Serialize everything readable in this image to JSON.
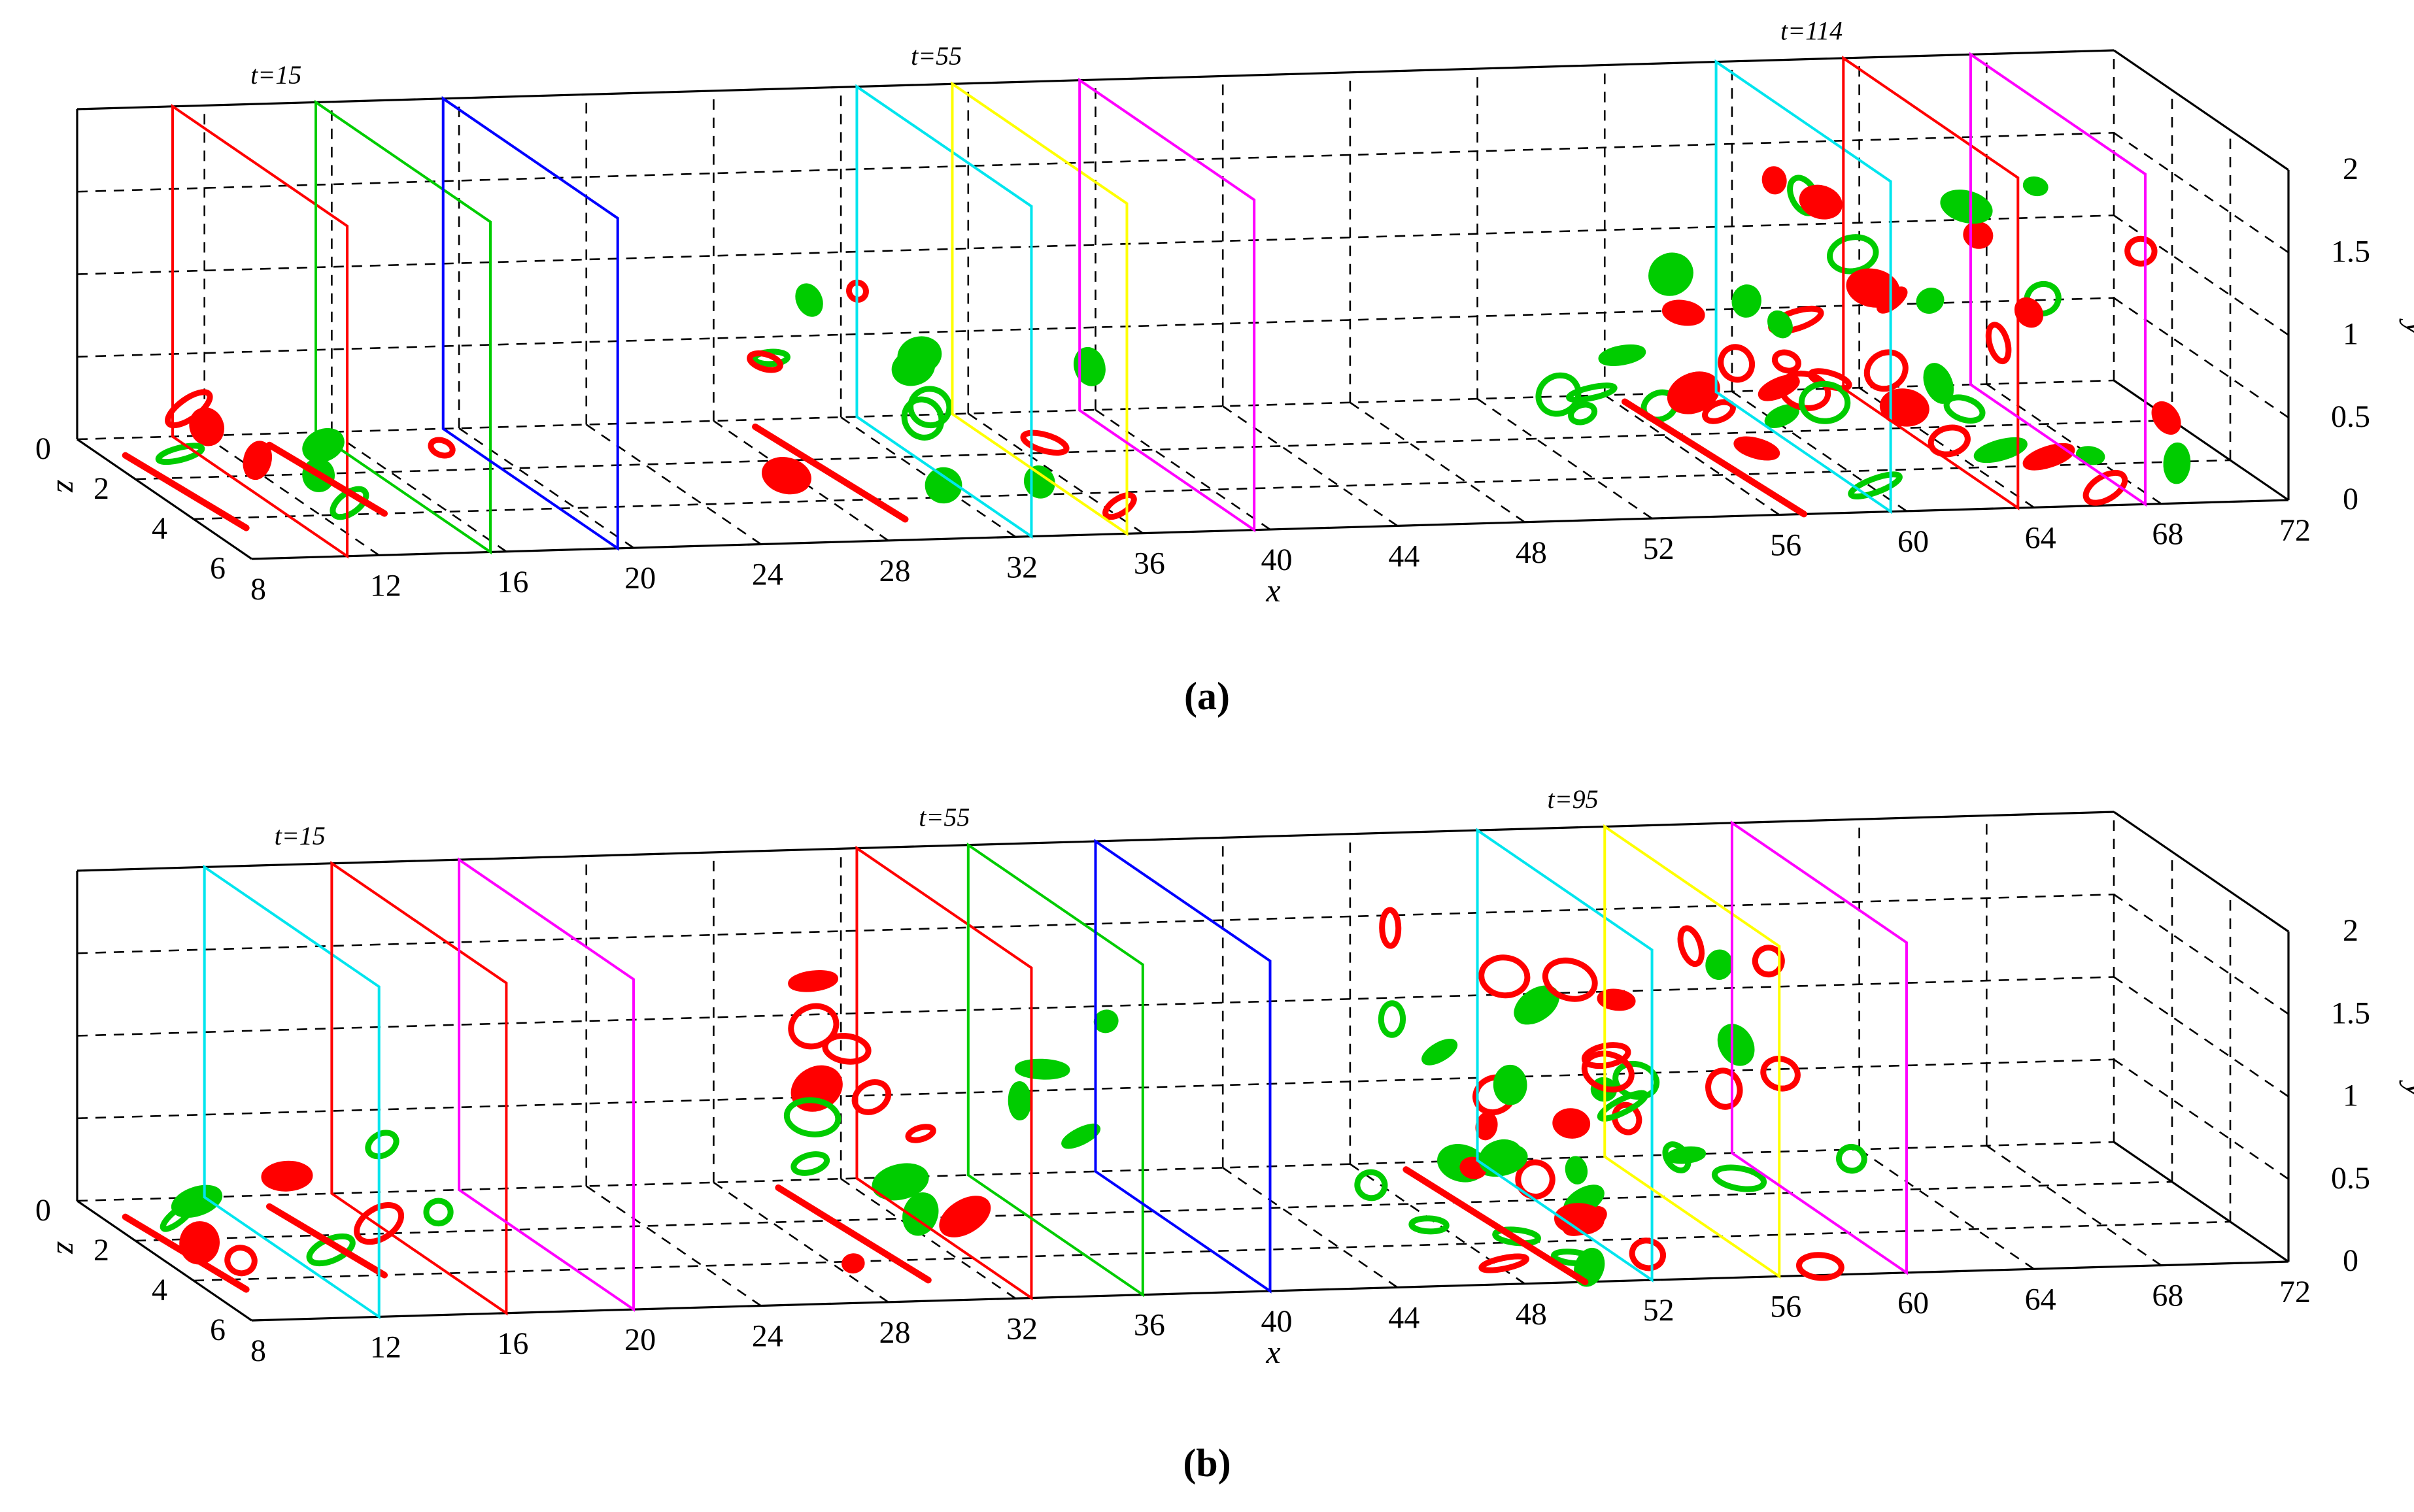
{
  "figure": {
    "panels": [
      {
        "label": "(a)",
        "chart_data": {
          "type": "3d-isosurface",
          "xlabel": "x",
          "ylabel": "y",
          "zlabel": "z",
          "xlim": [
            8,
            72
          ],
          "ylim": [
            0,
            2
          ],
          "zlim": [
            0,
            6
          ],
          "x_ticks": [
            "8",
            "12",
            "16",
            "20",
            "24",
            "28",
            "32",
            "36",
            "40",
            "44",
            "48",
            "52",
            "56",
            "60",
            "64",
            "68",
            "72"
          ],
          "y_ticks": [
            "0",
            "0.5",
            "1",
            "1.5",
            "2"
          ],
          "z_ticks": [
            "0",
            "2",
            "4",
            "6"
          ],
          "grid": true,
          "isosurface_colors": {
            "positive": "#ff0000",
            "negative": "#00cc00"
          },
          "time_groups": [
            {
              "label": "t=15",
              "planes": [
                {
                  "x": 11,
                  "color": "#ff0000"
                },
                {
                  "x": 15.5,
                  "color": "#00cc00"
                },
                {
                  "x": 19.5,
                  "color": "#0000ff"
                }
              ]
            },
            {
              "label": "t=55",
              "planes": [
                {
                  "x": 32.5,
                  "color": "#00e5ee"
                },
                {
                  "x": 35.5,
                  "color": "#ffff00"
                },
                {
                  "x": 39.5,
                  "color": "#ff00ff"
                }
              ]
            },
            {
              "label": "t=114",
              "planes": [
                {
                  "x": 59.5,
                  "color": "#00e5ee"
                },
                {
                  "x": 63.5,
                  "color": "#ff0000"
                },
                {
                  "x": 67.5,
                  "color": "#ff00ff"
                }
              ]
            }
          ],
          "structures": [
            {
              "x0": 8,
              "x1": 12,
              "z0": 0.5,
              "z1": 4.5,
              "ymax": 0.35,
              "density": 4
            },
            {
              "x0": 12.5,
              "x1": 18.5,
              "z0": 0.2,
              "z1": 4.0,
              "ymax": 0.45,
              "density": 4
            },
            {
              "x0": 27.5,
              "x1": 36.5,
              "z0": 0.0,
              "z1": 5.0,
              "ymax": 1.15,
              "density": 14
            },
            {
              "x0": 54,
              "x1": 68.5,
              "z0": 0.0,
              "z1": 6.0,
              "ymax": 1.6,
              "density": 46
            }
          ]
        }
      },
      {
        "label": "(b)",
        "chart_data": {
          "type": "3d-isosurface",
          "xlabel": "x",
          "ylabel": "y",
          "zlabel": "z",
          "xlim": [
            8,
            72
          ],
          "ylim": [
            0,
            2
          ],
          "zlim": [
            0,
            6
          ],
          "x_ticks": [
            "8",
            "12",
            "16",
            "20",
            "24",
            "28",
            "32",
            "36",
            "40",
            "44",
            "48",
            "52",
            "56",
            "60",
            "64",
            "68",
            "72"
          ],
          "y_ticks": [
            "0",
            "0.5",
            "1",
            "1.5",
            "2"
          ],
          "z_ticks": [
            "0",
            "2",
            "4",
            "6"
          ],
          "grid": true,
          "isosurface_colors": {
            "positive": "#ff0000",
            "negative": "#00cc00"
          },
          "time_groups": [
            {
              "label": "t=15",
              "planes": [
                {
                  "x": 12,
                  "color": "#00e5ee"
                },
                {
                  "x": 16,
                  "color": "#ff0000"
                },
                {
                  "x": 20,
                  "color": "#ff00ff"
                }
              ]
            },
            {
              "label": "t=55",
              "planes": [
                {
                  "x": 32.5,
                  "color": "#ff0000"
                },
                {
                  "x": 36,
                  "color": "#00cc00"
                },
                {
                  "x": 40,
                  "color": "#0000ff"
                }
              ]
            },
            {
              "label": "t=95",
              "planes": [
                {
                  "x": 52,
                  "color": "#00e5ee"
                },
                {
                  "x": 56,
                  "color": "#ffff00"
                },
                {
                  "x": 60,
                  "color": "#ff00ff"
                }
              ]
            }
          ],
          "structures": [
            {
              "x0": 8,
              "x1": 12,
              "z0": 0.5,
              "z1": 4.5,
              "ymax": 0.35,
              "density": 4
            },
            {
              "x0": 12.5,
              "x1": 18.5,
              "z0": 0.2,
              "z1": 4.0,
              "ymax": 0.45,
              "density": 5
            },
            {
              "x0": 28,
              "x1": 38.5,
              "z0": 0.0,
              "z1": 5.0,
              "ymax": 1.3,
              "density": 16
            },
            {
              "x0": 47.5,
              "x1": 59.5,
              "z0": 0.0,
              "z1": 6.0,
              "ymax": 1.55,
              "density": 44
            }
          ]
        }
      }
    ]
  }
}
